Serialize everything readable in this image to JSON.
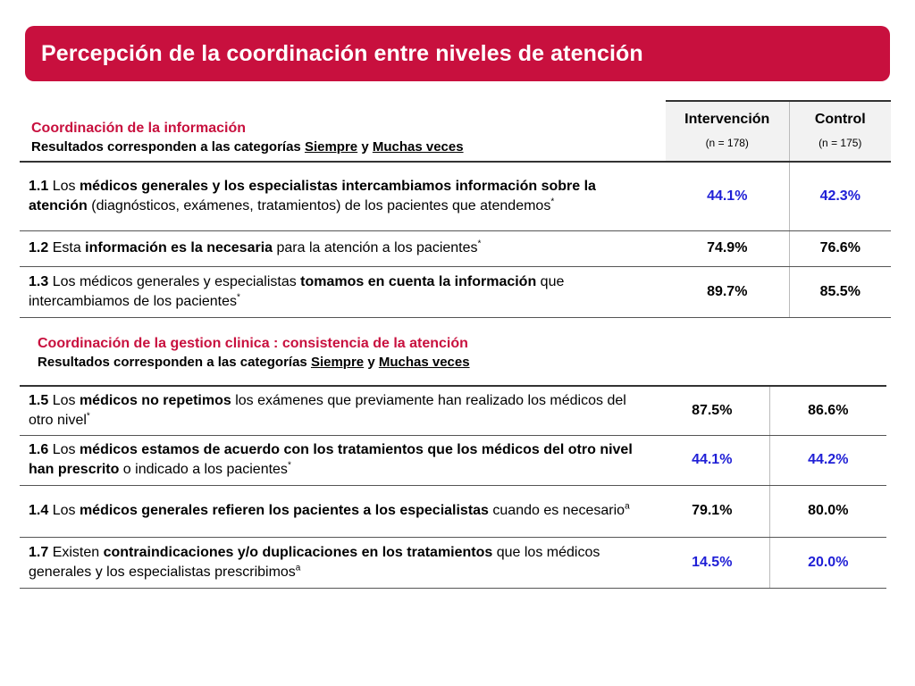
{
  "title": "Percepción de la coordinación entre niveles de atención",
  "section1": {
    "title": "Coordinación de la información",
    "subtitle_pre": "Resultados corresponden a las categorías ",
    "subtitle_u1": "Siempre",
    "subtitle_mid": " y ",
    "subtitle_u2": "Muchas veces"
  },
  "section2": {
    "title": "Coordinación de la gestion clinica : consistencia de la atención",
    "subtitle_pre": "Resultados corresponden a las categorías ",
    "subtitle_u1": "Siempre",
    "subtitle_mid": " y ",
    "subtitle_u2": "Muchas veces"
  },
  "columns": {
    "intervencion": "Intervención",
    "intervencion_n": "(n = 178)",
    "control": "Control",
    "control_n": "(n = 175)"
  },
  "table1": [
    {
      "num": "1.1",
      "parts": [
        " Los ",
        "médicos generales y los especialistas intercambiamos información sobre la atención",
        " (diagnósticos, exámenes, tratamientos) de los pacientes que atendemos"
      ],
      "mark": "*",
      "intervencion": "44.1%",
      "control": "42.3%",
      "color": "#1f1fd6"
    },
    {
      "num": "1.2",
      "parts": [
        " Esta ",
        "información es la necesaria",
        " para la atención a los pacientes"
      ],
      "mark": "*",
      "intervencion": "74.9%",
      "control": "76.6%",
      "color": "#000000"
    },
    {
      "num": "1.3",
      "parts": [
        " Los médicos generales y especialistas ",
        "tomamos en cuenta la información",
        " que intercambiamos de los pacientes"
      ],
      "mark": "*",
      "intervencion": "89.7%",
      "control": "85.5%",
      "color": "#000000"
    }
  ],
  "table2": [
    {
      "num": "1.5",
      "parts": [
        " Los ",
        "médicos no repetimos",
        " los exámenes que previamente han realizado los médicos del otro nivel"
      ],
      "mark": "*",
      "intervencion": "87.5%",
      "control": "86.6%",
      "color": "#000000"
    },
    {
      "num": "1.6",
      "parts": [
        " Los ",
        "médicos estamos de acuerdo con los tratamientos que los médicos del otro nivel han prescrito",
        " o indicado a los pacientes"
      ],
      "mark": "*",
      "intervencion": "44.1%",
      "control": "44.2%",
      "color": "#1f1fd6"
    },
    {
      "num": "1.4",
      "parts": [
        " Los ",
        "médicos generales refieren los pacientes a los especialistas",
        " cuando es necesario"
      ],
      "mark": "a",
      "intervencion": "79.1%",
      "control": "80.0%",
      "color": "#000000"
    },
    {
      "num": "1.7",
      "parts": [
        " Existen ",
        "contraindicaciones y/o duplicaciones en los tratamientos",
        " que los médicos generales y los especialistas prescribimos"
      ],
      "mark": "a",
      "intervencion": "14.5%",
      "control": "20.0%",
      "color": "#1f1fd6"
    }
  ]
}
